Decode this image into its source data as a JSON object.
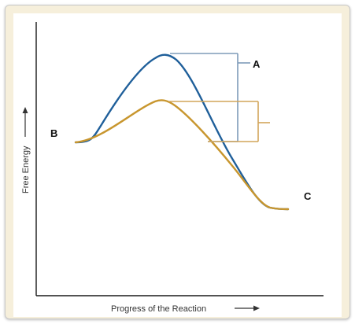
{
  "diagram": {
    "axes": {
      "x_label": "Progress of the Reaction",
      "y_label": "Free Energy"
    },
    "labels": {
      "a": "A",
      "b": "B",
      "c": "C"
    },
    "curves": {
      "uncatalyzed_color": "#1f5f9a",
      "catalyzed_color": "#c8962e"
    },
    "bracket_colors": {
      "a": "#7f9bb9",
      "catalyzed": "#d2a55a"
    }
  }
}
